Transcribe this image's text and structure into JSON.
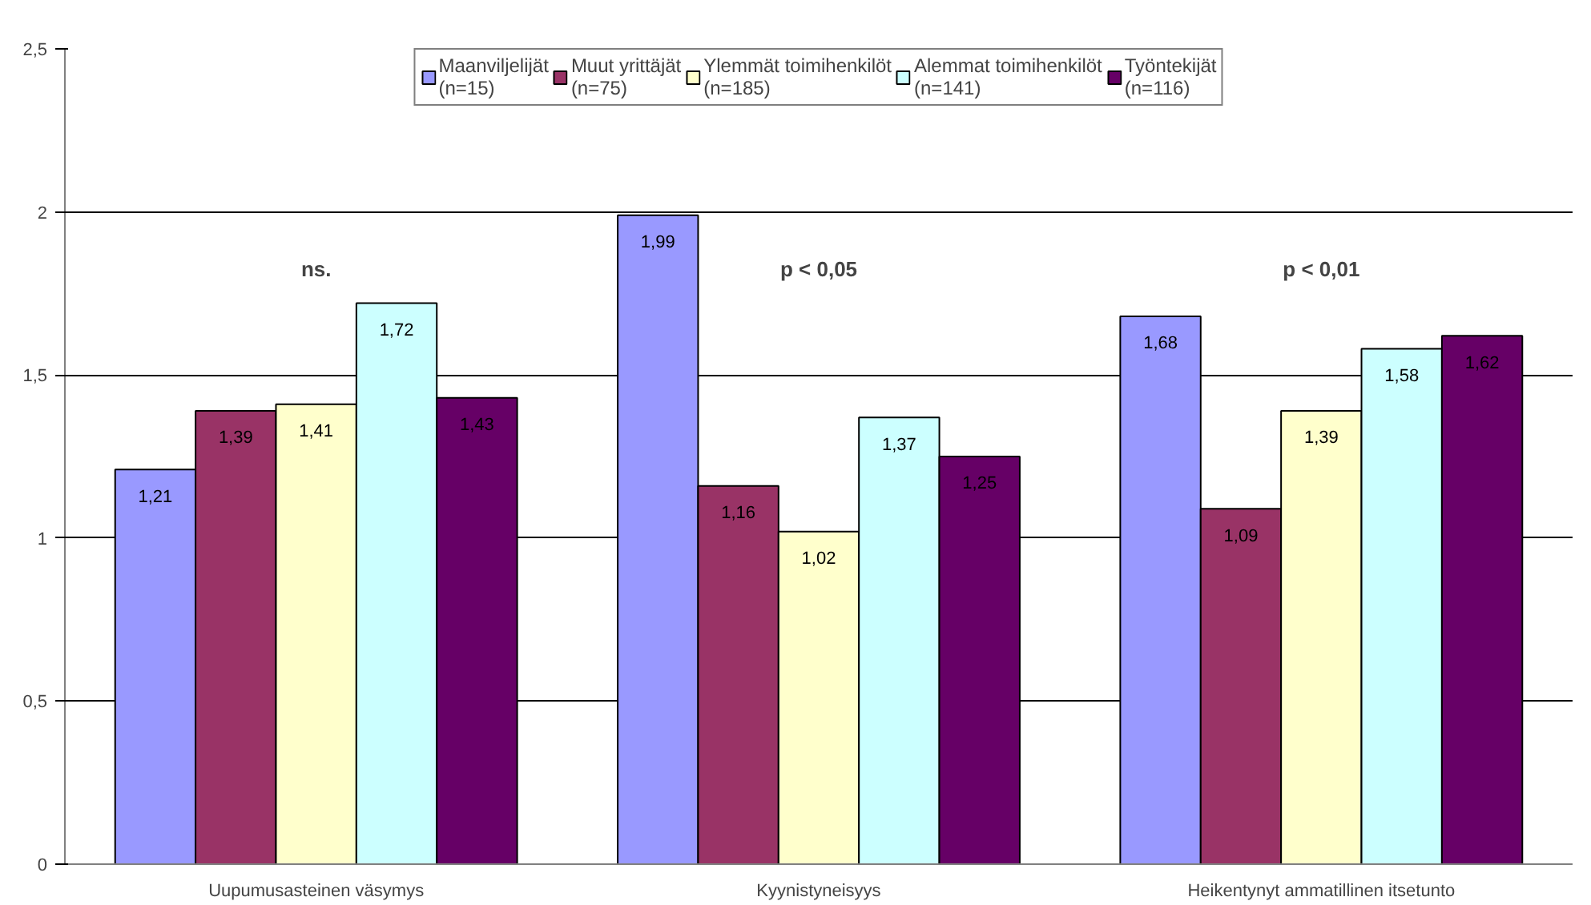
{
  "chart_data": {
    "type": "bar",
    "categories": [
      "Uupumusasteinen väsymys",
      "Kyynistyneisyys",
      "Heikentynyt ammatillinen itsetunto"
    ],
    "series": [
      {
        "name": "Maanviljelijät\n(n=15)",
        "color": "#9999ff",
        "values": [
          1.21,
          1.99,
          1.68
        ],
        "value_labels": [
          "1,21",
          "1,99",
          "1,68"
        ]
      },
      {
        "name": "Muut yrittäjät\n(n=75)",
        "color": "#993366",
        "values": [
          1.39,
          1.16,
          1.09
        ],
        "value_labels": [
          "1,39",
          "1,16",
          "1,09"
        ]
      },
      {
        "name": "Ylemmät toimihenkilöt\n(n=185)",
        "color": "#ffffcc",
        "values": [
          1.41,
          1.02,
          1.39
        ],
        "value_labels": [
          "1,41",
          "1,02",
          "1,39"
        ]
      },
      {
        "name": "Alemmat toimihenkilöt\n(n=141)",
        "color": "#ccffff",
        "values": [
          1.72,
          1.37,
          1.58
        ],
        "value_labels": [
          "1,72",
          "1,37",
          "1,58"
        ]
      },
      {
        "name": "Työntekijät\n(n=116)",
        "color": "#660066",
        "values": [
          1.43,
          1.25,
          1.62
        ],
        "value_labels": [
          "1,43",
          "1,25",
          "1,62"
        ]
      }
    ],
    "ylim": [
      0,
      2.5
    ],
    "yticks": [
      0,
      {
        "value": 0.5,
        "label": "0,5"
      },
      1,
      {
        "value": 1.5,
        "label": "1,5"
      },
      2,
      {
        "value": 2.5,
        "label": "2,5"
      }
    ],
    "grid": "y",
    "legend": "top",
    "annotations": [
      "ns.",
      "p < 0,05",
      "p < 0,01"
    ]
  }
}
